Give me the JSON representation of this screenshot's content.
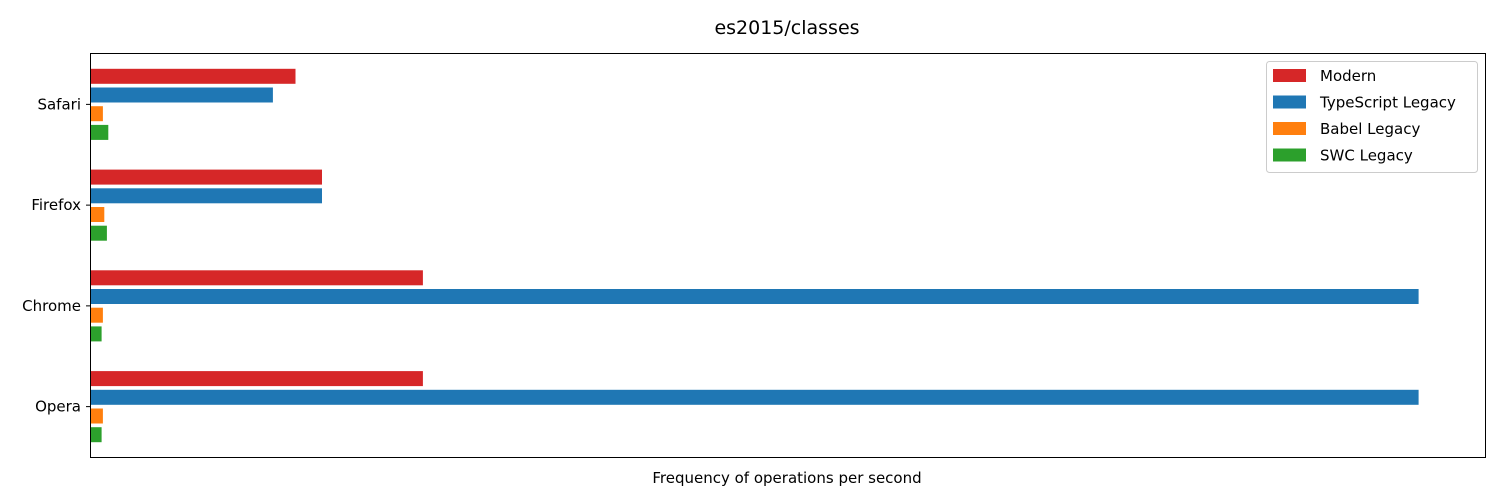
{
  "chart_data": {
    "type": "bar",
    "orientation": "horizontal",
    "title": "es2015/classes",
    "xlabel": "Frequency of operations per second",
    "ylabel": "",
    "x_ticks_shown": false,
    "categories": [
      "Safari",
      "Firefox",
      "Chrome",
      "Opera"
    ],
    "series": [
      {
        "name": "Modern",
        "color": "#d62728",
        "values": [
          0.154,
          0.174,
          0.25,
          0.25
        ]
      },
      {
        "name": "TypeScript Legacy",
        "color": "#1f77b4",
        "values": [
          0.137,
          0.174,
          1.0,
          1.0
        ]
      },
      {
        "name": "Babel Legacy",
        "color": "#ff7f0e",
        "values": [
          0.009,
          0.01,
          0.009,
          0.009
        ]
      },
      {
        "name": "SWC Legacy",
        "color": "#2ca02c",
        "values": [
          0.013,
          0.012,
          0.008,
          0.008
        ]
      }
    ],
    "xlim": [
      0,
      1.05
    ],
    "legend": "top-right",
    "grid": false
  }
}
